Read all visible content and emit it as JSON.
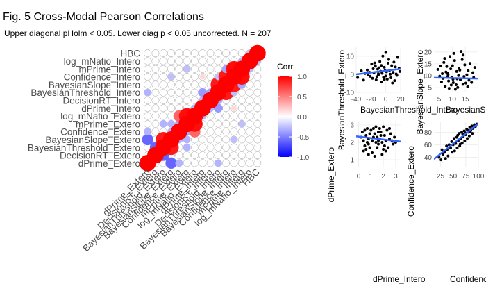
{
  "title": "Fig. 5 Cross-Modal Pearson Correlations",
  "subtitle": "Upper diagonal pHolm < 0.05. Lower diag p < 0.05 uncorrected. N = 207",
  "chart_data": [
    {
      "type": "heatmap",
      "variables": [
        "dPrime_Extero",
        "DecisionRT_Extero",
        "BayesianThreshold_Extero",
        "BayesianSlope_Extero",
        "Confidence_Extero",
        "mPrime_Extero",
        "log_mNatio_Extero",
        "dPrime_Intero",
        "DecisionRT_Intero",
        "BayesianThreshold_Intero",
        "BayesianSlope_Intero",
        "Confidence_Intero",
        "mPrime_Intero",
        "log_mNatio_Intero",
        "HBC"
      ],
      "y_order": "dPrime_Extero at bottom, HBC at top",
      "x_labels_shown": [
        "dPrime_Extero",
        "DecisionRT_Extero",
        "BayesianThreshold_Extero",
        "BayesianSlope_Extero",
        "Confidence_Extero",
        "mPrime_Extero",
        "log_mNatio_Extero",
        "dPrime_Intero",
        "DecisionRT_Intero",
        "BayesianThreshold_Intero",
        "BayesianSlope_Intero",
        "Confidence_Intero",
        "mPrime_Intero",
        "log_mNatio_Intero",
        "HBC"
      ],
      "significant_cells": [
        {
          "row": 0,
          "col": 3,
          "value": -0.6
        },
        {
          "row": 0,
          "col": 4,
          "value": -0.3
        },
        {
          "row": 0,
          "col": 9,
          "value": -0.3
        },
        {
          "row": 1,
          "col": 2,
          "value": -0.6
        },
        {
          "row": 2,
          "col": 3,
          "value": 0.9
        },
        {
          "row": 2,
          "col": 5,
          "value": -0.3
        },
        {
          "row": 3,
          "col": 4,
          "value": -0.3
        },
        {
          "row": 3,
          "col": 5,
          "value": -0.3
        },
        {
          "row": 3,
          "col": 11,
          "value": -0.25
        },
        {
          "row": 4,
          "col": 5,
          "value": -0.35
        },
        {
          "row": 4,
          "col": 6,
          "value": 0.6
        },
        {
          "row": 5,
          "col": 6,
          "value": 0.95
        },
        {
          "row": 5,
          "col": 12,
          "value": -0.25
        },
        {
          "row": 6,
          "col": 7,
          "value": -0.3
        },
        {
          "row": 7,
          "col": 8,
          "value": -0.3
        },
        {
          "row": 7,
          "col": 9,
          "value": -0.4
        },
        {
          "row": 7,
          "col": 11,
          "value": 0.15
        },
        {
          "row": 8,
          "col": 9,
          "value": -0.35
        },
        {
          "row": 9,
          "col": 10,
          "value": 0.9
        },
        {
          "row": 9,
          "col": 11,
          "value": -0.25
        },
        {
          "row": 10,
          "col": 11,
          "value": 0.9
        },
        {
          "row": 10,
          "col": 12,
          "value": -0.35
        },
        {
          "row": 11,
          "col": 12,
          "value": 0.95
        },
        {
          "row": 12,
          "col": 13,
          "value": -0.3
        },
        {
          "row": 13,
          "col": 14,
          "value": -0.25
        }
      ],
      "legend": {
        "title": "Corr",
        "ticks": [
          1.0,
          0.5,
          0.0,
          -0.5,
          -1.0
        ],
        "low_color": "#0000ff",
        "mid_color": "#ffffff",
        "high_color": "#ff0000"
      }
    },
    {
      "type": "scatter",
      "xlabel": "BayesianThreshold_Intero",
      "ylabel": "BayesianThreshold_Extero",
      "x_ticks": [
        "-40",
        "-20",
        "0",
        "20"
      ],
      "y_ticks": [
        "10",
        "0",
        "-10"
      ],
      "xlim": [
        -40,
        20
      ],
      "ylim": [
        -10,
        15
      ],
      "fit_line": {
        "x": [
          -40,
          20
        ],
        "y": [
          0,
          3
        ]
      },
      "points": [
        [
          -5,
          0.6
        ],
        [
          -22,
          1.1
        ],
        [
          -2,
          3.9
        ],
        [
          -18,
          -2.2
        ],
        [
          12,
          -3.5
        ],
        [
          8,
          4.8
        ],
        [
          -10,
          0.3
        ],
        [
          -3,
          -1.6
        ],
        [
          -30,
          -3.2
        ],
        [
          5,
          2.2
        ],
        [
          -14,
          4.5
        ],
        [
          16,
          9.4
        ],
        [
          -8,
          7.1
        ],
        [
          0,
          -0.9
        ],
        [
          -25,
          2.4
        ],
        [
          10,
          1.1
        ],
        [
          -6,
          -4.3
        ],
        [
          3,
          6.2
        ],
        [
          -12,
          -1.3
        ],
        [
          14,
          0.2
        ],
        [
          -19,
          5.7
        ],
        [
          -1,
          2.1
        ],
        [
          7,
          -1.9
        ],
        [
          -16,
          0.8
        ],
        [
          -4,
          10.1
        ],
        [
          18,
          3.3
        ],
        [
          -28,
          0.5
        ],
        [
          2,
          -2.7
        ],
        [
          -9,
          3.6
        ],
        [
          11,
          6.8
        ],
        [
          -13,
          -3.1
        ],
        [
          6,
          0.1
        ],
        [
          -21,
          -1.1
        ],
        [
          -7,
          1.7
        ],
        [
          15,
          -0.6
        ],
        [
          -33,
          1.9
        ],
        [
          4,
          8.2
        ],
        [
          -11,
          2.9
        ],
        [
          9,
          -4.8
        ],
        [
          -17,
          3.1
        ],
        [
          1,
          1.4
        ],
        [
          -24,
          -0.3
        ],
        [
          13,
          4.1
        ],
        [
          -2,
          -2.9
        ],
        [
          -15,
          6.3
        ],
        [
          19,
          1.6
        ],
        [
          -6,
          4.9
        ],
        [
          -38,
          -1.8
        ],
        [
          0,
          12.1
        ],
        [
          -10,
          -0.4
        ]
      ]
    },
    {
      "type": "scatter",
      "xlabel": "BayesianSlope_Intero",
      "ylabel": "BayesianSlope_Extero",
      "x_ticks": [
        "5",
        "10",
        "15"
      ],
      "y_ticks": [
        "20",
        "15",
        "10",
        "5"
      ],
      "xlim": [
        3,
        20
      ],
      "ylim": [
        3,
        22
      ],
      "fit_line": {
        "x": [
          3,
          20
        ],
        "y": [
          9.2,
          8.8
        ]
      },
      "points": [
        [
          10.3,
          8.5
        ],
        [
          8.1,
          11.2
        ],
        [
          14.1,
          6.4
        ],
        [
          5.2,
          9.8
        ],
        [
          12.6,
          13.1
        ],
        [
          17.4,
          7.2
        ],
        [
          6.8,
          15.6
        ],
        [
          11.2,
          4.3
        ],
        [
          9.1,
          18.1
        ],
        [
          15.6,
          10.4
        ],
        [
          7.3,
          5.6
        ],
        [
          13.4,
          20.2
        ],
        [
          4.5,
          12.7
        ],
        [
          18.2,
          9.3
        ],
        [
          10.9,
          16.4
        ],
        [
          8.6,
          7.8
        ],
        [
          16.1,
          12.1
        ],
        [
          12.1,
          5.1
        ],
        [
          6.2,
          10.9
        ],
        [
          14.8,
          14.6
        ],
        [
          9.8,
          9.2
        ],
        [
          11.7,
          11.8
        ],
        [
          7.9,
          13.9
        ],
        [
          13.1,
          8.3
        ],
        [
          15.2,
          6.9
        ],
        [
          8.8,
          4.7
        ],
        [
          10.6,
          19.4
        ],
        [
          16.8,
          15.2
        ],
        [
          5.9,
          7.4
        ],
        [
          12.4,
          10.1
        ],
        [
          9.4,
          12.9
        ],
        [
          14.5,
          9.7
        ],
        [
          7.1,
          17.3
        ],
        [
          11.5,
          6.2
        ],
        [
          17.9,
          11.3
        ],
        [
          10.1,
          14.2
        ],
        [
          6.5,
          8.9
        ],
        [
          13.8,
          16.8
        ],
        [
          8.4,
          10.4
        ],
        [
          15.9,
          5.4
        ],
        [
          11.9,
          8.7
        ],
        [
          9.6,
          6.1
        ],
        [
          12.9,
          12.4
        ],
        [
          5.5,
          14.1
        ],
        [
          16.4,
          8.1
        ],
        [
          7.6,
          11.6
        ],
        [
          14.2,
          18.7
        ],
        [
          10.4,
          7.1
        ],
        [
          18.6,
          13.5
        ],
        [
          8.2,
          9.5
        ]
      ]
    },
    {
      "type": "scatter",
      "xlabel": "dPrime_Intero",
      "ylabel": "dPrime_Extero",
      "x_ticks": [
        "0",
        "1",
        "2",
        "3"
      ],
      "y_ticks": [
        "3",
        "2",
        "1"
      ],
      "xlim": [
        -0.2,
        3.4
      ],
      "ylim": [
        0.6,
        3.2
      ],
      "fit_line": {
        "x": [
          -0.2,
          3.4
        ],
        "y": [
          2.35,
          2.05
        ]
      },
      "points": [
        [
          1.2,
          2.3
        ],
        [
          0.8,
          1.9
        ],
        [
          1.6,
          2.6
        ],
        [
          0.4,
          2.1
        ],
        [
          2.1,
          1.8
        ],
        [
          1.4,
          2.9
        ],
        [
          0.9,
          2.5
        ],
        [
          2.5,
          2.2
        ],
        [
          0.6,
          1.6
        ],
        [
          1.8,
          2.4
        ],
        [
          1.1,
          1.4
        ],
        [
          2.3,
          2.7
        ],
        [
          0.3,
          2.6
        ],
        [
          1.5,
          1.7
        ],
        [
          2.7,
          2.1
        ],
        [
          0.7,
          2.8
        ],
        [
          1.9,
          2.0
        ],
        [
          1.3,
          1.2
        ],
        [
          2.0,
          2.9
        ],
        [
          0.5,
          1.8
        ],
        [
          1.7,
          2.2
        ],
        [
          2.8,
          1.9
        ],
        [
          1.0,
          2.7
        ],
        [
          2.2,
          1.5
        ],
        [
          0.2,
          2.3
        ],
        [
          1.6,
          1.9
        ],
        [
          2.6,
          2.5
        ],
        [
          0.8,
          2.2
        ],
        [
          1.4,
          2.0
        ],
        [
          2.9,
          2.3
        ],
        [
          1.2,
          2.8
        ],
        [
          0.6,
          2.4
        ],
        [
          2.4,
          1.7
        ],
        [
          1.8,
          2.6
        ],
        [
          0.9,
          1.7
        ],
        [
          2.1,
          2.4
        ],
        [
          1.5,
          2.3
        ],
        [
          3.0,
          2.0
        ],
        [
          0.4,
          1.5
        ],
        [
          1.9,
          1.3
        ],
        [
          1.1,
          2.1
        ],
        [
          2.5,
          2.8
        ],
        [
          0.7,
          2.0
        ],
        [
          1.7,
          2.8
        ],
        [
          2.2,
          2.1
        ],
        [
          1.3,
          2.5
        ],
        [
          0.5,
          2.7
        ],
        [
          2.0,
          1.6
        ],
        [
          1.6,
          2.1
        ],
        [
          0.8,
          1.3
        ]
      ]
    },
    {
      "type": "scatter",
      "xlabel": "Confidence_Intero",
      "ylabel": "Confidence_Extero",
      "x_ticks": [
        "25",
        "50",
        "75",
        "100"
      ],
      "y_ticks": [
        "80",
        "60",
        "40"
      ],
      "xlim": [
        12,
        100
      ],
      "ylim": [
        25,
        97
      ],
      "fit_line": {
        "x": [
          12,
          100
        ],
        "y": [
          37,
          94
        ]
      },
      "points": [
        [
          22,
          40
        ],
        [
          30,
          45
        ],
        [
          38,
          52
        ],
        [
          45,
          55
        ],
        [
          50,
          60
        ],
        [
          55,
          62
        ],
        [
          60,
          66
        ],
        [
          65,
          70
        ],
        [
          70,
          73
        ],
        [
          75,
          76
        ],
        [
          80,
          80
        ],
        [
          85,
          84
        ],
        [
          90,
          87
        ],
        [
          95,
          91
        ],
        [
          28,
          52
        ],
        [
          35,
          38
        ],
        [
          42,
          60
        ],
        [
          48,
          48
        ],
        [
          52,
          70
        ],
        [
          58,
          55
        ],
        [
          62,
          78
        ],
        [
          68,
          63
        ],
        [
          72,
          82
        ],
        [
          78,
          70
        ],
        [
          83,
          88
        ],
        [
          88,
          78
        ],
        [
          92,
          92
        ],
        [
          40,
          42
        ],
        [
          47,
          65
        ],
        [
          53,
          50
        ],
        [
          57,
          72
        ],
        [
          63,
          58
        ],
        [
          67,
          80
        ],
        [
          73,
          66
        ],
        [
          77,
          85
        ],
        [
          82,
          74
        ],
        [
          87,
          90
        ],
        [
          33,
          48
        ],
        [
          44,
          57
        ],
        [
          59,
          75
        ],
        [
          64,
          61
        ],
        [
          69,
          77
        ],
        [
          74,
          79
        ],
        [
          79,
          83
        ],
        [
          84,
          81
        ],
        [
          89,
          86
        ],
        [
          94,
          89
        ],
        [
          26,
          36
        ],
        [
          37,
          58
        ],
        [
          97,
          93
        ]
      ]
    }
  ]
}
